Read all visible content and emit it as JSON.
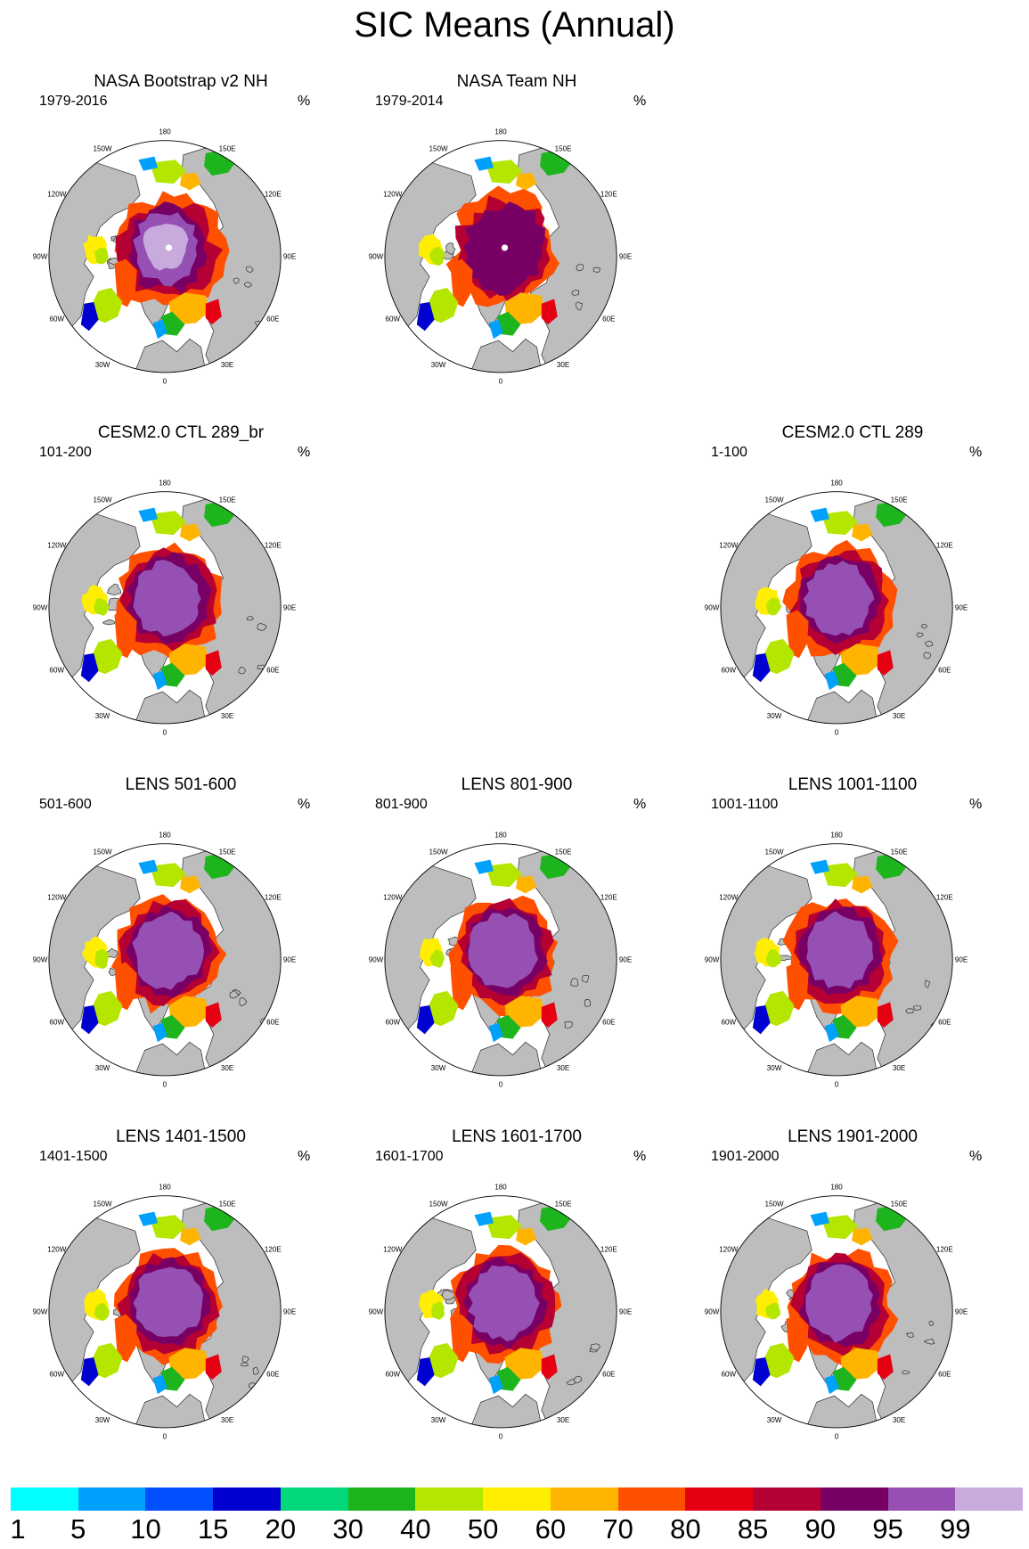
{
  "title": "SIC Means (Annual)",
  "colors": {
    "land": "#bdbdbd",
    "ocean": "#ffffff",
    "coast": "#333333"
  },
  "lon_labels": [
    "180",
    "150E",
    "120E",
    "90E",
    "60E",
    "30E",
    "0",
    "30W",
    "60W",
    "90W",
    "120W",
    "150W"
  ],
  "panels": [
    {
      "id": "p1",
      "title": "NASA Bootstrap v2 NH",
      "period": "1979-2016",
      "unit": "%",
      "variant": "bootstrap"
    },
    {
      "id": "p2",
      "title": "NASA Team NH",
      "period": "1979-2014",
      "unit": "%",
      "variant": "team"
    },
    {
      "id": "p3",
      "title": "CESM2.0 CTL 289_br",
      "period": "101-200",
      "unit": "%",
      "variant": "cesm"
    },
    {
      "id": "p4",
      "title": "CESM2.0 CTL 289",
      "period": "1-100",
      "unit": "%",
      "variant": "cesm"
    },
    {
      "id": "p5",
      "title": "LENS 501-600",
      "period": "501-600",
      "unit": "%",
      "variant": "lens"
    },
    {
      "id": "p6",
      "title": "LENS 801-900",
      "period": "801-900",
      "unit": "%",
      "variant": "lens"
    },
    {
      "id": "p7",
      "title": "LENS 1001-1100",
      "period": "1001-1100",
      "unit": "%",
      "variant": "lens"
    },
    {
      "id": "p8",
      "title": "LENS 1401-1500",
      "period": "1401-1500",
      "unit": "%",
      "variant": "lens"
    },
    {
      "id": "p9",
      "title": "LENS 1601-1700",
      "period": "1601-1700",
      "unit": "%",
      "variant": "lens"
    },
    {
      "id": "p10",
      "title": "LENS 1901-2000",
      "period": "1901-2000",
      "unit": "%",
      "variant": "lens"
    }
  ],
  "colorbar": {
    "colors": [
      "#00ffff",
      "#00a0ff",
      "#0050ff",
      "#0000d0",
      "#00d87a",
      "#1eb41e",
      "#b4e600",
      "#ffee00",
      "#ffb400",
      "#ff5000",
      "#e60014",
      "#b40032",
      "#780064",
      "#9650b4",
      "#c8aadc"
    ],
    "labels": [
      "1",
      "5",
      "10",
      "15",
      "20",
      "30",
      "40",
      "50",
      "60",
      "70",
      "80",
      "85",
      "90",
      "95",
      "99"
    ]
  }
}
